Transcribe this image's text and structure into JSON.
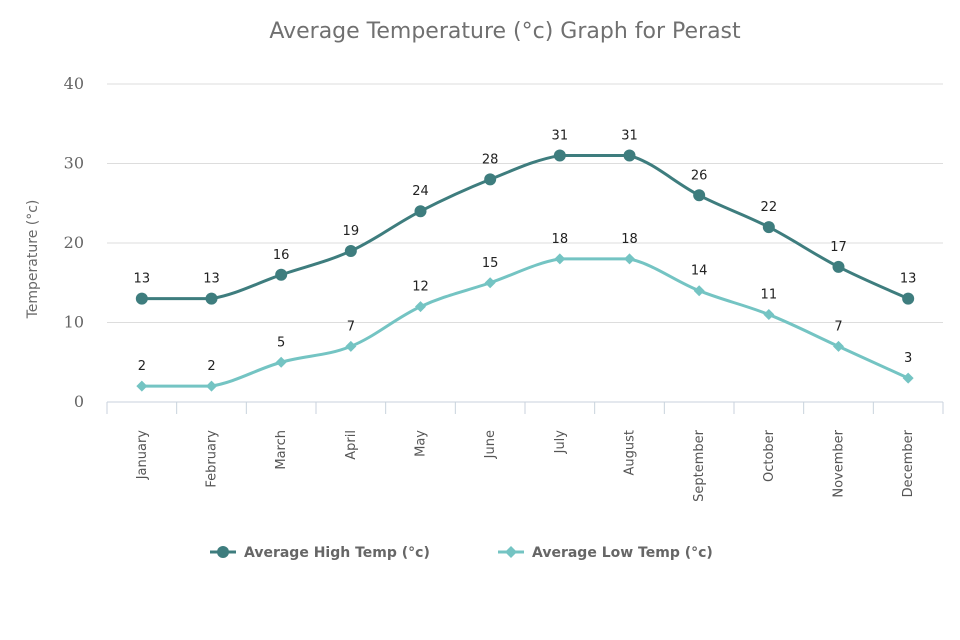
{
  "chart_data": {
    "type": "line",
    "title": "Average Temperature (°c) Graph for Perast",
    "xlabel": "",
    "ylabel": "Temperature (°c)",
    "ylim": [
      0,
      40
    ],
    "yticks": [
      0,
      10,
      20,
      30,
      40
    ],
    "grid": true,
    "legend_position": "bottom",
    "categories": [
      "January",
      "February",
      "March",
      "April",
      "May",
      "June",
      "July",
      "August",
      "September",
      "October",
      "November",
      "December"
    ],
    "series": [
      {
        "name": "Average High Temp (°c)",
        "values": [
          13,
          13,
          16,
          19,
          24,
          28,
          31,
          31,
          26,
          22,
          17,
          13
        ],
        "color": "#3e7d7e",
        "marker": "circle"
      },
      {
        "name": "Average Low Temp (°c)",
        "values": [
          2,
          2,
          5,
          7,
          12,
          15,
          18,
          18,
          14,
          11,
          7,
          3
        ],
        "color": "#74c4c3",
        "marker": "diamond"
      }
    ]
  }
}
